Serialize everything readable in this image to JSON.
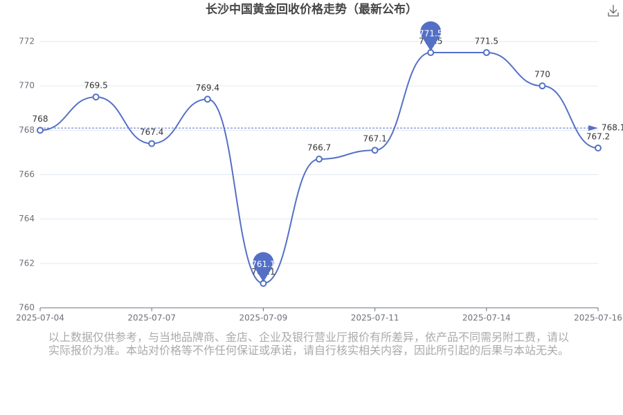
{
  "chart_data": {
    "type": "line",
    "title": "长沙中国黄金回收价格走势（最新公布）",
    "categories": [
      "2025-07-04",
      null,
      "2025-07-07",
      null,
      "2025-07-09",
      null,
      "2025-07-11",
      null,
      "2025-07-14",
      null,
      "2025-07-16"
    ],
    "values": [
      768,
      769.5,
      767.4,
      769.4,
      761.1,
      766.7,
      767.1,
      771.5,
      771.5,
      770,
      767.2
    ],
    "color": "#5470c6",
    "ylim": [
      760,
      772
    ],
    "yticks": [
      760,
      762,
      764,
      766,
      768,
      770,
      772
    ],
    "grid": true,
    "average_line": 768.1,
    "mark_points": [
      771.5,
      761.1
    ]
  },
  "footnote": "以上数据仅供参考，与当地品牌商、金店、企业及银行营业厅报价有所差异，依产品不同需另附工费，请以实际报价为准。本站对价格等不作任何保证或承诺，请自行核实相关内容，因此所引起的后果与本站无关。"
}
